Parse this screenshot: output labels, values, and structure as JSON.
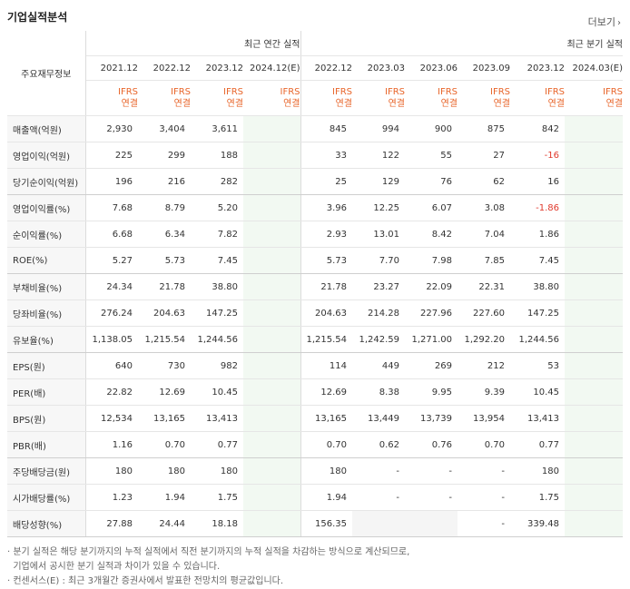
{
  "title": "기업실적분석",
  "more_label": "더보기",
  "more_arrow": "›",
  "corner_label": "주요재무정보",
  "group_annual": "최근 연간 실적",
  "group_quarter": "최근 분기 실적",
  "annual_periods": [
    "2021.12",
    "2022.12",
    "2023.12",
    "2024.12(E)"
  ],
  "quarter_periods": [
    "2022.12",
    "2023.03",
    "2023.06",
    "2023.09",
    "2023.12",
    "2024.03(E)"
  ],
  "ifrs_top": "IFRS",
  "ifrs_bottom": "연결",
  "rows": [
    {
      "label": "매출액(억원)",
      "annual": [
        "2,930",
        "3,404",
        "3,611",
        ""
      ],
      "quarter": [
        "845",
        "994",
        "900",
        "875",
        "842",
        ""
      ]
    },
    {
      "label": "영업이익(억원)",
      "annual": [
        "225",
        "299",
        "188",
        ""
      ],
      "quarter": [
        "33",
        "122",
        "55",
        "27",
        "-16",
        ""
      ]
    },
    {
      "label": "당기순이익(억원)",
      "annual": [
        "196",
        "216",
        "282",
        ""
      ],
      "quarter": [
        "25",
        "129",
        "76",
        "62",
        "16",
        ""
      ]
    },
    {
      "label": "영업이익률(%)",
      "annual": [
        "7.68",
        "8.79",
        "5.20",
        ""
      ],
      "quarter": [
        "3.96",
        "12.25",
        "6.07",
        "3.08",
        "-1.86",
        ""
      ]
    },
    {
      "label": "순이익률(%)",
      "annual": [
        "6.68",
        "6.34",
        "7.82",
        ""
      ],
      "quarter": [
        "2.93",
        "13.01",
        "8.42",
        "7.04",
        "1.86",
        ""
      ]
    },
    {
      "label": "ROE(%)",
      "annual": [
        "5.27",
        "5.73",
        "7.45",
        ""
      ],
      "quarter": [
        "5.73",
        "7.70",
        "7.98",
        "7.85",
        "7.45",
        ""
      ]
    },
    {
      "label": "부채비율(%)",
      "annual": [
        "24.34",
        "21.78",
        "38.80",
        ""
      ],
      "quarter": [
        "21.78",
        "23.27",
        "22.09",
        "22.31",
        "38.80",
        ""
      ]
    },
    {
      "label": "당좌비율(%)",
      "annual": [
        "276.24",
        "204.63",
        "147.25",
        ""
      ],
      "quarter": [
        "204.63",
        "214.28",
        "227.96",
        "227.60",
        "147.25",
        ""
      ]
    },
    {
      "label": "유보율(%)",
      "annual": [
        "1,138.05",
        "1,215.54",
        "1,244.56",
        ""
      ],
      "quarter": [
        "1,215.54",
        "1,242.59",
        "1,271.00",
        "1,292.20",
        "1,244.56",
        ""
      ]
    },
    {
      "label": "EPS(원)",
      "annual": [
        "640",
        "730",
        "982",
        ""
      ],
      "quarter": [
        "114",
        "449",
        "269",
        "212",
        "53",
        ""
      ]
    },
    {
      "label": "PER(배)",
      "annual": [
        "22.82",
        "12.69",
        "10.45",
        ""
      ],
      "quarter": [
        "12.69",
        "8.38",
        "9.95",
        "9.39",
        "10.45",
        ""
      ]
    },
    {
      "label": "BPS(원)",
      "annual": [
        "12,534",
        "13,165",
        "13,413",
        ""
      ],
      "quarter": [
        "13,165",
        "13,449",
        "13,739",
        "13,954",
        "13,413",
        ""
      ]
    },
    {
      "label": "PBR(배)",
      "annual": [
        "1.16",
        "0.70",
        "0.77",
        ""
      ],
      "quarter": [
        "0.70",
        "0.62",
        "0.76",
        "0.70",
        "0.77",
        ""
      ]
    },
    {
      "label": "주당배당금(원)",
      "annual": [
        "180",
        "180",
        "180",
        ""
      ],
      "quarter": [
        "180",
        "-",
        "-",
        "-",
        "180",
        ""
      ]
    },
    {
      "label": "시가배당률(%)",
      "annual": [
        "1.23",
        "1.94",
        "1.75",
        ""
      ],
      "quarter": [
        "1.94",
        "-",
        "-",
        "-",
        "1.75",
        ""
      ]
    },
    {
      "label": "배당성향(%)",
      "annual": [
        "27.88",
        "24.44",
        "18.18",
        ""
      ],
      "quarter": [
        "156.35",
        "",
        "",
        "-",
        "339.48",
        ""
      ]
    }
  ],
  "notes": [
    "· 분기 실적은 해당 분기까지의 누적 실적에서 직전 분기까지의 누적 실적을 차감하는 방식으로 계산되므로,",
    "  기업에서 공시한 분기 실적과 차이가 있을 수 있습니다.",
    "· 컨센서스(E) : 최근 3개월간 증권사에서 발표한 전망치의 평균값입니다."
  ],
  "colors": {
    "ifrs": "#e8652a",
    "negative": "#e03a2d",
    "estimate_bg": "#f2f9f2"
  }
}
